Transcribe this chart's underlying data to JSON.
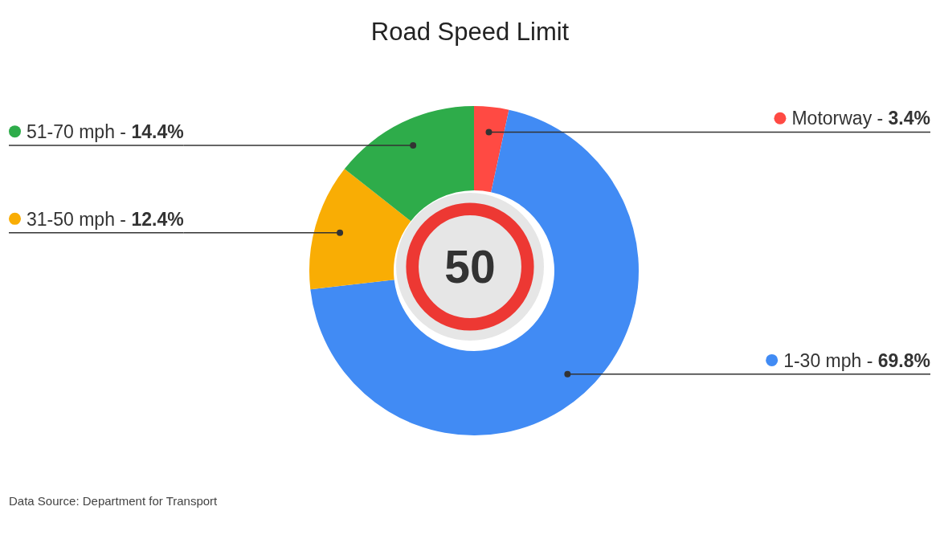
{
  "chart_data": {
    "type": "donut",
    "title": "Road Speed Limit",
    "categories": [
      "Motorway -",
      "1-30 mph -",
      "31-50 mph -",
      "51-70 mph -"
    ],
    "values": [
      3.4,
      69.8,
      12.4,
      14.4
    ],
    "colors": [
      "#ff4a43",
      "#418bf4",
      "#f9ad04",
      "#2eac4a"
    ],
    "value_labels": [
      "3.4%",
      "69.8%",
      "12.4%",
      "14.4%"
    ],
    "legend": "top left",
    "annotations": [
      "Data Source: Department for Transport",
      "50"
    ]
  }
}
